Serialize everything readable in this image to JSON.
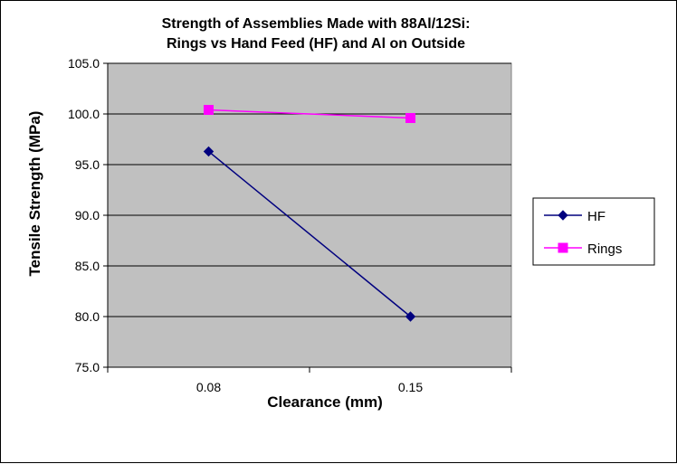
{
  "chart_data": {
    "type": "line",
    "title": [
      "Strength of Assemblies Made with 88Al/12Si:",
      "Rings vs Hand Feed (HF) and Al on Outside"
    ],
    "xlabel": "Clearance (mm)",
    "ylabel": "Tensile Strength (MPa)",
    "categories": [
      "0.08",
      "0.15"
    ],
    "ylim": [
      75.0,
      105.0
    ],
    "yticks": [
      "75.0",
      "80.0",
      "85.0",
      "90.0",
      "95.0",
      "100.0",
      "105.0"
    ],
    "grid": true,
    "legend_position": "right",
    "series": [
      {
        "name": "HF",
        "values": [
          96.3,
          80.0
        ],
        "color": "#00007f",
        "marker": "diamond"
      },
      {
        "name": "Rings",
        "values": [
          100.4,
          99.6
        ],
        "color": "#ff00ff",
        "marker": "square"
      }
    ],
    "plot_background": "#c0c0c0"
  }
}
